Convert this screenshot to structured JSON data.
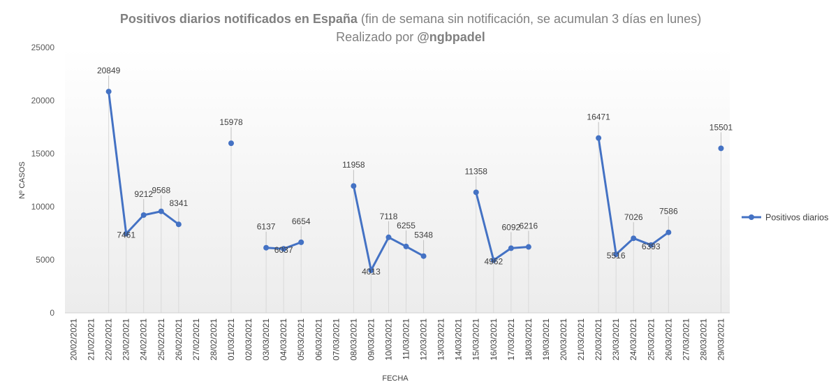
{
  "chart_data": {
    "type": "line",
    "title": {
      "bold": "Positivos diarios notificados en España",
      "rest": " (fin de semana sin notificación, se acumulan 3 días en lunes)",
      "line2_prefix": "Realizado por ",
      "line2_bold": "@ngbpadel"
    },
    "xlabel": "FECHA",
    "ylabel": "Nº  CASOS",
    "ylim": [
      0,
      25000
    ],
    "yticks": [
      0,
      5000,
      10000,
      15000,
      20000,
      25000
    ],
    "grid": false,
    "legend": {
      "position": "right",
      "entries": [
        "Positivos diarios"
      ]
    },
    "categories": [
      "20/02/2021",
      "21/02/2021",
      "22/02/2021",
      "23/02/2021",
      "24/02/2021",
      "25/02/2021",
      "26/02/2021",
      "27/02/2021",
      "28/02/2021",
      "01/03/2021",
      "02/03/2021",
      "03/03/2021",
      "04/03/2021",
      "05/03/2021",
      "06/03/2021",
      "07/03/2021",
      "08/03/2021",
      "09/03/2021",
      "10/03/2021",
      "11/03/2021",
      "12/03/2021",
      "13/03/2021",
      "14/03/2021",
      "15/03/2021",
      "16/03/2021",
      "17/03/2021",
      "18/03/2021",
      "19/03/2021",
      "20/03/2021",
      "21/03/2021",
      "22/03/2021",
      "23/03/2021",
      "24/03/2021",
      "25/03/2021",
      "26/03/2021",
      "27/03/2021",
      "28/03/2021",
      "29/03/2021"
    ],
    "series": [
      {
        "name": "Positivos diarios",
        "color": "#4472C4",
        "values": [
          null,
          null,
          20849,
          7461,
          9212,
          9568,
          8341,
          null,
          null,
          15978,
          null,
          6137,
          6037,
          6654,
          null,
          null,
          11958,
          4013,
          7118,
          6255,
          5348,
          null,
          null,
          11358,
          4962,
          6092,
          6216,
          null,
          null,
          null,
          16471,
          5516,
          7026,
          6393,
          7586,
          null,
          null,
          15501
        ]
      }
    ]
  }
}
